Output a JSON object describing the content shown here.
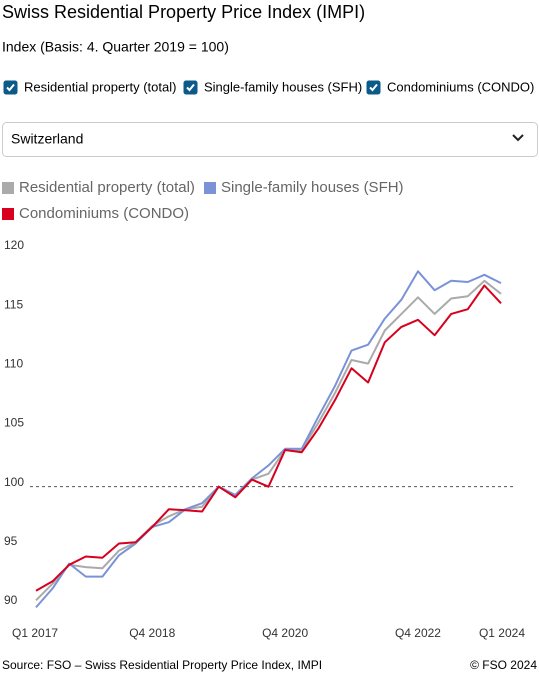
{
  "header": {
    "title": "Swiss Residential Property Price Index (IMPI)",
    "subtitle": "Index (Basis: 4. Quarter 2019 = 100)"
  },
  "filters": [
    {
      "label": "Residential property (total)",
      "checked": true
    },
    {
      "label": "Single-family houses (SFH)",
      "checked": true
    },
    {
      "label": "Condominiums (CONDO)",
      "checked": true
    }
  ],
  "dropdown": {
    "value": "Switzerland"
  },
  "chart_data": {
    "type": "line",
    "categories": [
      "Q1 2017",
      null,
      null,
      null,
      null,
      null,
      null,
      "Q4 2018",
      null,
      null,
      null,
      null,
      null,
      null,
      null,
      "Q4 2020",
      null,
      null,
      null,
      null,
      null,
      null,
      null,
      "Q4 2022",
      null,
      null,
      null,
      null,
      "Q1 2024"
    ],
    "series": [
      {
        "name": "Residential property (total)",
        "color": "#aaaaaa",
        "values": [
          90.4,
          91.8,
          93.4,
          93.2,
          93.1,
          94.6,
          95.3,
          96.7,
          97.5,
          98.1,
          98.3,
          100.0,
          99.3,
          100.6,
          101.1,
          103.1,
          103.1,
          105.4,
          107.9,
          110.7,
          110.4,
          113.2,
          114.6,
          116.0,
          114.6,
          115.9,
          116.1,
          117.4,
          116.3
        ]
      },
      {
        "name": "Single-family houses (SFH)",
        "color": "#7b93d6",
        "values": [
          89.8,
          91.4,
          93.5,
          92.4,
          92.4,
          94.2,
          95.2,
          96.6,
          97.0,
          98.1,
          98.6,
          100.0,
          99.3,
          100.7,
          101.8,
          103.2,
          103.2,
          105.9,
          108.5,
          111.5,
          112.0,
          114.2,
          115.8,
          118.2,
          116.6,
          117.4,
          117.3,
          117.9,
          117.2
        ]
      },
      {
        "name": "Condominiums (CONDO)",
        "color": "#d7001e",
        "values": [
          91.2,
          92.0,
          93.4,
          94.1,
          94.0,
          95.2,
          95.3,
          96.6,
          98.1,
          98.0,
          97.9,
          100.0,
          99.1,
          100.6,
          100.0,
          103.1,
          102.9,
          104.9,
          107.3,
          110.0,
          108.8,
          112.2,
          113.5,
          114.1,
          112.8,
          114.6,
          115.0,
          117.0,
          115.5
        ]
      }
    ],
    "ylim": [
      90,
      120
    ],
    "yticks": [
      90,
      95,
      100,
      105,
      110,
      115,
      120
    ],
    "grid": false,
    "reference_line": 100
  },
  "footer": {
    "source": "Source: FSO – Swiss Residential Property Price Index, IMPI",
    "copyright": "© FSO 2024"
  }
}
